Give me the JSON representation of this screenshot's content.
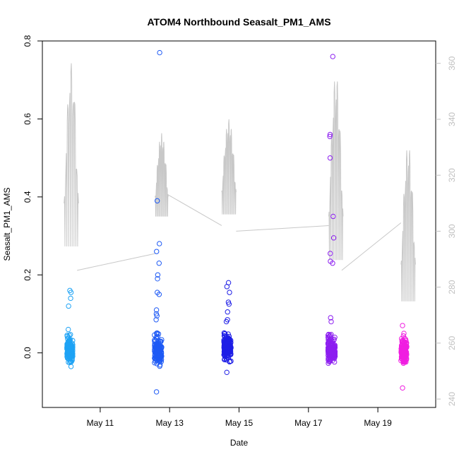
{
  "chart_data": {
    "type": "scatter",
    "title": "ATOM4 Northbound Seasalt_PM1_AMS",
    "xlabel": "Date",
    "ylabel": "Seasalt_PM1_AMS",
    "x_axis": {
      "type": "date",
      "range": [
        "2018-05-09T08:00",
        "2018-05-20T16:00"
      ],
      "ticks": [
        {
          "value": "2018-05-11",
          "label": "May 11"
        },
        {
          "value": "2018-05-13",
          "label": "May 13"
        },
        {
          "value": "2018-05-15",
          "label": "May 15"
        },
        {
          "value": "2018-05-17",
          "label": "May 17"
        },
        {
          "value": "2018-05-19",
          "label": "May 19"
        }
      ]
    },
    "y_axis": {
      "range": [
        -0.14,
        0.8
      ],
      "ticks": [
        {
          "value": 0.0,
          "label": "0.0"
        },
        {
          "value": 0.2,
          "label": "0.2"
        },
        {
          "value": 0.4,
          "label": "0.4"
        },
        {
          "value": 0.6,
          "label": "0.6"
        },
        {
          "value": 0.8,
          "label": "0.8"
        }
      ]
    },
    "y2_axis": {
      "range": [
        237,
        368
      ],
      "ticks": [
        {
          "value": 240,
          "label": "240"
        },
        {
          "value": 260,
          "label": "260"
        },
        {
          "value": 280,
          "label": "280"
        },
        {
          "value": 300,
          "label": "300"
        },
        {
          "value": 320,
          "label": "320"
        },
        {
          "value": 340,
          "label": "340"
        },
        {
          "value": 360,
          "label": "360"
        }
      ]
    },
    "grid": false,
    "colors": {
      "flight1": "#1ea3f5",
      "flight2": "#1e5af5",
      "flight3": "#1e1ee6",
      "flight4": "#8c1ef0",
      "flight5": "#f01ee1",
      "secondary_line": "#c8c8c8"
    },
    "flights": [
      {
        "center": "2018-05-10T03:00",
        "spread_hours": 4,
        "color": "#1ea3f5",
        "outliers": [
          0.16,
          0.155,
          0.14,
          0.12,
          0.06,
          0.045,
          -0.035
        ]
      },
      {
        "center": "2018-05-12T16:00",
        "spread_hours": 5,
        "color": "#1e5af5",
        "outliers": [
          0.77,
          0.39,
          0.28,
          0.26,
          0.23,
          0.2,
          0.19,
          0.155,
          0.15,
          0.11,
          0.1,
          0.095,
          0.085,
          -0.1
        ]
      },
      {
        "center": "2018-05-14T16:00",
        "spread_hours": 5,
        "color": "#1e1ee6",
        "outliers": [
          0.18,
          0.17,
          0.155,
          0.13,
          0.125,
          0.105,
          0.085,
          0.08,
          -0.05
        ]
      },
      {
        "center": "2018-05-17T16:00",
        "spread_hours": 5,
        "color": "#8c1ef0",
        "outliers": [
          0.76,
          0.56,
          0.555,
          0.5,
          0.35,
          0.295,
          0.255,
          0.235,
          0.23,
          0.09,
          0.08
        ]
      },
      {
        "center": "2018-05-19T18:00",
        "spread_hours": 4,
        "color": "#f01ee1",
        "outliers": [
          0.07,
          0.05,
          -0.09
        ]
      }
    ],
    "secondary_series": {
      "name": "",
      "axis": "y2",
      "segments": [
        {
          "start": "2018-05-09T23:00",
          "end": "2018-05-10T09:00",
          "min": 283,
          "max": 360,
          "oscillations": 4
        },
        {
          "start": "2018-05-12T14:00",
          "end": "2018-05-12T23:00",
          "min": 300,
          "max": 335,
          "oscillations": 6
        },
        {
          "start": "2018-05-14T12:00",
          "end": "2018-05-14T22:00",
          "min": 300,
          "max": 340,
          "oscillations": 6
        },
        {
          "start": "2018-05-17T14:00",
          "end": "2018-05-18T00:00",
          "min": 278,
          "max": 356,
          "oscillations": 5
        },
        {
          "start": "2018-05-19T16:00",
          "end": "2018-05-20T02:00",
          "min": 265,
          "max": 331,
          "oscillations": 5
        }
      ],
      "transits": [
        {
          "from": "2018-05-10T08:00",
          "to": "2018-05-12T14:00",
          "from_value": 286,
          "to_value": 292
        },
        {
          "from": "2018-05-12T23:00",
          "to": "2018-05-14T12:00",
          "from_value": 313,
          "to_value": 302
        },
        {
          "from": "2018-05-14T22:00",
          "to": "2018-05-17T14:00",
          "from_value": 300,
          "to_value": 302
        },
        {
          "from": "2018-05-17T23:00",
          "to": "2018-05-19T16:00",
          "from_value": 286,
          "to_value": 303
        }
      ]
    }
  }
}
